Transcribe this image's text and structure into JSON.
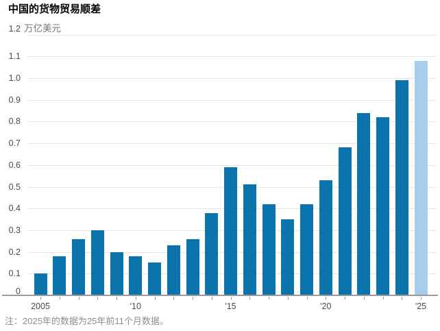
{
  "title": "中国的货物贸易顺差",
  "y_axis": {
    "unit": "万亿美元",
    "ticks": [
      "0",
      "0.1",
      "0.2",
      "0.3",
      "0.4",
      "0.5",
      "0.6",
      "0.7",
      "0.8",
      "0.9",
      "1.0",
      "1.1",
      "1.2"
    ]
  },
  "x_axis": {
    "ticks": [
      {
        "bar_index": 0,
        "label": "2005"
      },
      {
        "bar_index": 5,
        "label": "'10"
      },
      {
        "bar_index": 10,
        "label": "'15"
      },
      {
        "bar_index": 15,
        "label": "'20"
      },
      {
        "bar_index": 20,
        "label": "'25"
      }
    ]
  },
  "footnote": "注：2025年的数据为25年前11个月数据。",
  "colors": {
    "bar": "#0c74ad",
    "bar_highlight": "#a6cdec",
    "gridline": "#e5e5e5",
    "axis_line": "#9a9a9a",
    "tick_text": "#4a4a4a",
    "unit_text": "#757575",
    "title_text": "#000000",
    "footnote_text": "#8e8e87"
  },
  "chart_data": {
    "type": "bar",
    "title": "中国的货物贸易顺差",
    "ylabel": "万亿美元",
    "categories": [
      2005,
      2006,
      2007,
      2008,
      2009,
      2010,
      2011,
      2012,
      2013,
      2014,
      2015,
      2016,
      2017,
      2018,
      2019,
      2020,
      2021,
      2022,
      2023,
      2024,
      2025
    ],
    "values": [
      0.1,
      0.18,
      0.26,
      0.3,
      0.2,
      0.18,
      0.15,
      0.23,
      0.26,
      0.38,
      0.59,
      0.51,
      0.42,
      0.35,
      0.42,
      0.53,
      0.68,
      0.84,
      0.82,
      0.99,
      1.08
    ],
    "highlight_index": 20,
    "highlight_meaning": "2025 bar drawn in lighter blue (first 11 months of data)",
    "ylim": [
      0,
      1.2
    ],
    "ytick_step": 0.1,
    "xtick_labels": [
      "2005",
      "'10",
      "'15",
      "'20",
      "'25"
    ],
    "grid": true,
    "legend": false
  }
}
